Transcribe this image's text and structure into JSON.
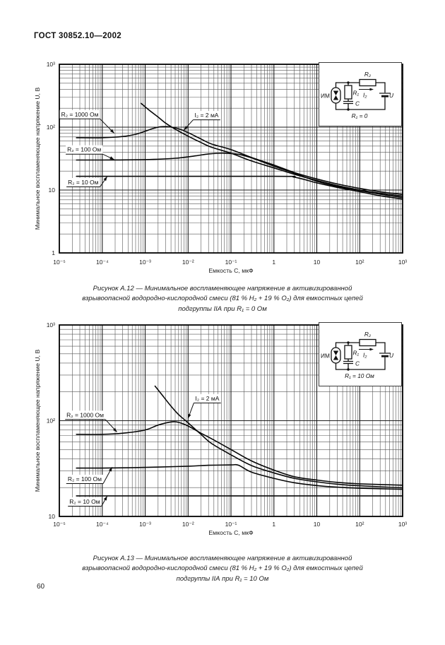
{
  "header": {
    "title": "ГОСТ 30852.10—2002"
  },
  "page_number": "60",
  "figures": [
    {
      "caption": "Рисунок А.12 — Минимальное воспламеняющее напряжение в активизированной взрывоопасной водородно-кислородной смеси (81 % Н₂ + 19 % О₂) для емкостных цепей подгруппы IIА при R₁ = 0 Ом",
      "inset": {
        "im": "ИМ",
        "r2": "R₂",
        "r1": "R₁",
        "i2": "I₂",
        "c": "C",
        "u": "U",
        "cond": "R₁ = 0"
      }
    },
    {
      "caption": "Рисунок А.13 — Минимальное воспламеняющее напряжение в активизированной взрывоопасной водородно-кислородной смеси (81 % Н₂ + 19 % О₂) для емкостных цепей подгруппы IIА при R₁ = 10 Ом",
      "inset": {
        "im": "ИМ",
        "r2": "R₂",
        "r1": "R₁",
        "i2": "I₂",
        "c": "C",
        "u": "U",
        "cond": "R₁ = 10 Ом"
      }
    }
  ],
  "chart_data": [
    {
      "type": "line",
      "title": "",
      "xlabel": "Емкость С, мкФ",
      "ylabel": "Минимальное воспламеняющее напряжение U, В",
      "xscale": "log",
      "yscale": "log",
      "grid": "log-minor",
      "legend_position": "none",
      "xlim": [
        1e-05,
        1000
      ],
      "ylim": [
        1,
        1000
      ],
      "x_ticks": [
        {
          "v": 1e-05,
          "label": "10⁻⁵"
        },
        {
          "v": 0.0001,
          "label": "10⁻⁴"
        },
        {
          "v": 0.001,
          "label": "10⁻³"
        },
        {
          "v": 0.01,
          "label": "10⁻²"
        },
        {
          "v": 0.1,
          "label": "10⁻¹"
        },
        {
          "v": 1,
          "label": "1"
        },
        {
          "v": 10,
          "label": "10"
        },
        {
          "v": 100,
          "label": "10²"
        },
        {
          "v": 1000,
          "label": "10³"
        }
      ],
      "y_ticks": [
        {
          "v": 1000,
          "label": "10³"
        },
        {
          "v": 100,
          "label": "10²"
        },
        {
          "v": 10,
          "label": "10"
        },
        {
          "v": 1,
          "label": "1"
        }
      ],
      "series": [
        {
          "name": "R₂ = 1000 Ом",
          "points": [
            [
              2.5e-05,
              68
            ],
            [
              0.0001,
              68
            ],
            [
              0.0003,
              71
            ],
            [
              0.0006,
              77
            ],
            [
              0.001,
              86
            ],
            [
              0.0015,
              95
            ],
            [
              0.0022,
              101
            ],
            [
              0.0032,
              102
            ],
            [
              0.0045,
              99
            ],
            [
              0.007,
              91
            ],
            [
              0.01,
              82
            ],
            [
              0.02,
              65
            ],
            [
              0.035,
              54
            ],
            [
              0.1,
              44
            ],
            [
              0.3,
              33
            ],
            [
              1,
              25
            ],
            [
              3,
              19
            ],
            [
              10,
              15
            ],
            [
              30,
              12.5
            ],
            [
              100,
              10.6
            ],
            [
              300,
              9.4
            ],
            [
              1000,
              8.5
            ]
          ]
        },
        {
          "name": "I₂ = 2 мА",
          "points": [
            [
              0.0008,
              240
            ],
            [
              0.0012,
              190
            ],
            [
              0.002,
              145
            ],
            [
              0.003,
              116
            ],
            [
              0.005,
              93
            ],
            [
              0.01,
              72
            ],
            [
              0.02,
              57
            ],
            [
              0.035,
              48
            ],
            [
              0.1,
              38.5
            ],
            [
              0.3,
              29
            ],
            [
              1,
              22.5
            ],
            [
              3,
              17.8
            ],
            [
              10,
              14.2
            ],
            [
              30,
              11.8
            ],
            [
              100,
              10
            ],
            [
              300,
              8.9
            ],
            [
              1000,
              8
            ]
          ]
        },
        {
          "name": "R₂ = 100 Ом",
          "points": [
            [
              2.5e-05,
              30
            ],
            [
              0.0001,
              30
            ],
            [
              0.001,
              30.5
            ],
            [
              0.005,
              32
            ],
            [
              0.015,
              35
            ],
            [
              0.03,
              37.5
            ],
            [
              0.07,
              38.5
            ],
            [
              0.15,
              37
            ],
            [
              0.3,
              32.5
            ],
            [
              1,
              24
            ],
            [
              3,
              18.5
            ],
            [
              10,
              13.8
            ],
            [
              30,
              11.4
            ],
            [
              100,
              9.8
            ],
            [
              300,
              8.6
            ],
            [
              1000,
              7.6
            ]
          ]
        },
        {
          "name": "R₂ = 10 Ом",
          "points": [
            [
              2.5e-05,
              16.5
            ],
            [
              1,
              16.5
            ],
            [
              3,
              16
            ],
            [
              10,
              13
            ],
            [
              30,
              11
            ],
            [
              100,
              9.4
            ],
            [
              300,
              8.1
            ],
            [
              1000,
              7.2
            ]
          ]
        }
      ],
      "annotations": [
        {
          "text": "R₂ = 1000 Ом",
          "tx": 3e-05,
          "ty": 160,
          "ax": 0.00019,
          "ay": 80
        },
        {
          "text": "I₂ = 2 мА",
          "tx": 0.027,
          "ty": 155,
          "ax": 0.008,
          "ay": 90
        },
        {
          "text": "R₂ = 100 Ом",
          "tx": 3.8e-05,
          "ty": 44,
          "ax": 0.00019,
          "ay": 30.5
        },
        {
          "text": "R₂ = 10 Ом",
          "tx": 3.6e-05,
          "ty": 13.3,
          "ax": 0.00013,
          "ay": 16.4
        }
      ]
    },
    {
      "type": "line",
      "title": "",
      "xlabel": "Емкость С, мкФ",
      "ylabel": "Минимальное воспламеняющее напряжение U, В",
      "xscale": "log",
      "yscale": "log",
      "grid": "log-minor",
      "legend_position": "none",
      "xlim": [
        1e-05,
        1000
      ],
      "ylim": [
        10,
        1000
      ],
      "x_ticks": [
        {
          "v": 1e-05,
          "label": "10⁻⁵"
        },
        {
          "v": 0.0001,
          "label": "10⁻⁴"
        },
        {
          "v": 0.001,
          "label": "10⁻³"
        },
        {
          "v": 0.01,
          "label": "10⁻²"
        },
        {
          "v": 0.1,
          "label": "10⁻¹"
        },
        {
          "v": 1,
          "label": "1"
        },
        {
          "v": 10,
          "label": "10"
        },
        {
          "v": 100,
          "label": "10²"
        },
        {
          "v": 1000,
          "label": "10³"
        }
      ],
      "y_ticks": [
        {
          "v": 1000,
          "label": "10³"
        },
        {
          "v": 100,
          "label": "10²"
        },
        {
          "v": 10,
          "label": "10"
        }
      ],
      "series": [
        {
          "name": "R₂ = 1000 Ом",
          "points": [
            [
              2.5e-05,
              72
            ],
            [
              0.0001,
              72
            ],
            [
              0.0003,
              74
            ],
            [
              0.001,
              80
            ],
            [
              0.002,
              90
            ],
            [
              0.004,
              97
            ],
            [
              0.006,
              96
            ],
            [
              0.01,
              88
            ],
            [
              0.02,
              74
            ],
            [
              0.035,
              65
            ],
            [
              0.1,
              50
            ],
            [
              0.3,
              38
            ],
            [
              1,
              30.5
            ],
            [
              3,
              26
            ],
            [
              10,
              24
            ],
            [
              30,
              22.7
            ],
            [
              100,
              21.9
            ],
            [
              1000,
              21.2
            ]
          ]
        },
        {
          "name": "I₂ = 2 мА",
          "points": [
            [
              0.0017,
              230
            ],
            [
              0.0025,
              185
            ],
            [
              0.004,
              142
            ],
            [
              0.006,
              116
            ],
            [
              0.01,
              95
            ],
            [
              0.02,
              72
            ],
            [
              0.035,
              58
            ],
            [
              0.1,
              44
            ],
            [
              0.3,
              34
            ],
            [
              1,
              28.5
            ],
            [
              3,
              25
            ],
            [
              10,
              23
            ],
            [
              30,
              21.7
            ],
            [
              100,
              20.9
            ],
            [
              1000,
              19.9
            ]
          ]
        },
        {
          "name": "R₂ = 100 Ом",
          "points": [
            [
              2.5e-05,
              32
            ],
            [
              0.0001,
              32
            ],
            [
              0.001,
              32.5
            ],
            [
              0.01,
              33.5
            ],
            [
              0.03,
              34.2
            ],
            [
              0.1,
              34.5
            ],
            [
              0.15,
              34.3
            ],
            [
              0.3,
              29
            ],
            [
              1,
              25
            ],
            [
              3,
              22.5
            ],
            [
              10,
              21
            ],
            [
              30,
              20.2
            ],
            [
              100,
              19.7
            ],
            [
              1000,
              19.2
            ]
          ]
        },
        {
          "name": "R₂ = 10 Ом",
          "points": [
            [
              2.5e-05,
              16.4
            ],
            [
              0.01,
              16.4
            ],
            [
              1000,
              16.4
            ]
          ]
        }
      ],
      "annotations": [
        {
          "text": "R₂ = 1000 Ом",
          "tx": 4e-05,
          "ty": 115,
          "ax": 0.00022,
          "ay": 76
        },
        {
          "text": "I₂ = 2 мА",
          "tx": 0.028,
          "ty": 171,
          "ax": 0.01,
          "ay": 106
        },
        {
          "text": "R₂ = 100 Ом",
          "tx": 3.9e-05,
          "ty": 24.6,
          "ax": 0.00017,
          "ay": 32.7
        },
        {
          "text": "R₂ = 10 Ом",
          "tx": 3.9e-05,
          "ty": 14.3,
          "ax": 0.00013,
          "ay": 16.3
        }
      ]
    }
  ]
}
